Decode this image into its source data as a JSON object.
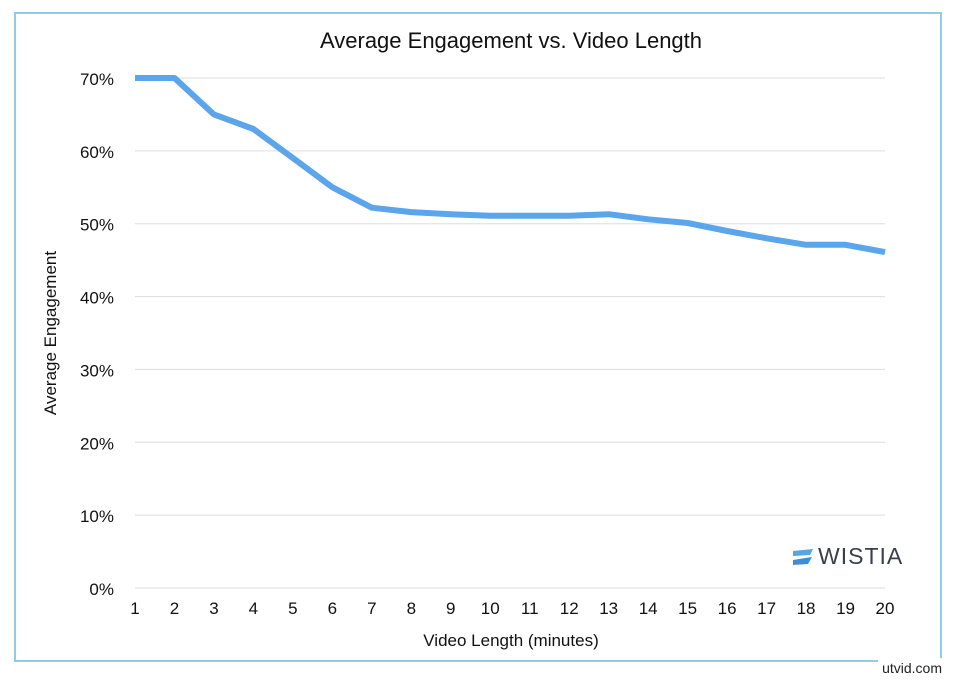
{
  "chart_data": {
    "type": "line",
    "title": "Average Engagement vs. Video Length",
    "xlabel": "Video Length (minutes)",
    "ylabel": "Average Engagement",
    "x": [
      1,
      2,
      3,
      4,
      5,
      6,
      7,
      8,
      9,
      10,
      11,
      12,
      13,
      14,
      15,
      16,
      17,
      18,
      19,
      20
    ],
    "series": [
      {
        "values": [
          70,
          70,
          65,
          63,
          59,
          55,
          52.2,
          51.6,
          51.3,
          51.1,
          51.1,
          51.1,
          51.3,
          50.6,
          50.1,
          49,
          48,
          47.1,
          47.1,
          46.1
        ],
        "color": "#5aa5ec"
      }
    ],
    "xticks": [
      "1",
      "2",
      "3",
      "4",
      "5",
      "6",
      "7",
      "8",
      "9",
      "10",
      "11",
      "12",
      "13",
      "14",
      "15",
      "16",
      "17",
      "18",
      "19",
      "20"
    ],
    "yticks": [
      "0%",
      "10%",
      "20%",
      "30%",
      "40%",
      "50%",
      "60%",
      "70%"
    ],
    "ylim": [
      0,
      70
    ],
    "xlim": [
      1,
      20
    ],
    "grid": "horizontal",
    "legend": "none"
  },
  "branding": {
    "logo": "WISTIA",
    "logo_color": "#54a6e8"
  },
  "watermark": "utvid.com",
  "frame_color": "#93cbe4"
}
